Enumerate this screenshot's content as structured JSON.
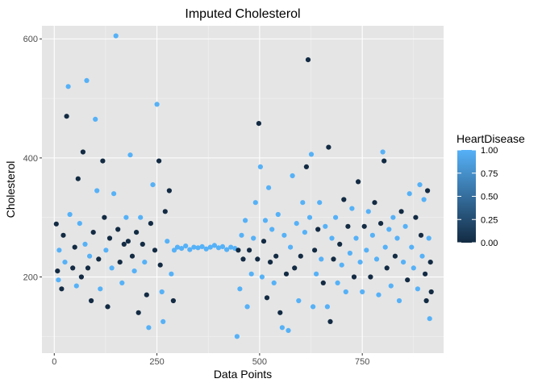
{
  "chart_data": {
    "type": "scatter",
    "title": "Imputed Cholesterol",
    "xlabel": "Data Points",
    "ylabel": "Cholesterol",
    "xlim": [
      -30,
      948
    ],
    "ylim": [
      72,
      622
    ],
    "x_ticks": [
      0,
      250,
      500,
      750
    ],
    "y_ticks": [
      200,
      400,
      600
    ],
    "grid": true,
    "panel_background": "#e5e5e5",
    "legend": {
      "title": "HeartDisease",
      "position": "right",
      "min": 0,
      "max": 1,
      "breaks": [
        0,
        0.25,
        0.5,
        0.75,
        1
      ],
      "break_labels": [
        "0.00",
        "0.25",
        "0.50",
        "0.75",
        "1.00"
      ],
      "low_color": "#132b43",
      "high_color": "#56b1f7"
    },
    "point_color_variable": "HeartDisease",
    "points": [
      [
        5,
        289,
        0
      ],
      [
        8,
        210,
        0
      ],
      [
        10,
        195,
        1
      ],
      [
        12,
        245,
        1
      ],
      [
        18,
        180,
        0
      ],
      [
        22,
        270,
        0
      ],
      [
        26,
        225,
        1
      ],
      [
        30,
        470,
        0
      ],
      [
        34,
        520,
        1
      ],
      [
        38,
        305,
        1
      ],
      [
        45,
        215,
        0
      ],
      [
        50,
        250,
        0
      ],
      [
        54,
        185,
        1
      ],
      [
        58,
        365,
        0
      ],
      [
        62,
        290,
        1
      ],
      [
        66,
        200,
        0
      ],
      [
        70,
        410,
        0
      ],
      [
        75,
        255,
        1
      ],
      [
        79,
        530,
        1
      ],
      [
        82,
        215,
        0
      ],
      [
        86,
        235,
        1
      ],
      [
        90,
        160,
        0
      ],
      [
        95,
        275,
        0
      ],
      [
        100,
        465,
        1
      ],
      [
        104,
        345,
        1
      ],
      [
        108,
        230,
        0
      ],
      [
        112,
        180,
        1
      ],
      [
        118,
        395,
        0
      ],
      [
        122,
        300,
        0
      ],
      [
        126,
        245,
        1
      ],
      [
        130,
        150,
        0
      ],
      [
        135,
        265,
        0
      ],
      [
        140,
        215,
        1
      ],
      [
        145,
        340,
        1
      ],
      [
        150,
        605,
        1
      ],
      [
        155,
        280,
        0
      ],
      [
        160,
        225,
        0
      ],
      [
        165,
        190,
        1
      ],
      [
        170,
        255,
        0
      ],
      [
        175,
        300,
        1
      ],
      [
        180,
        260,
        0
      ],
      [
        185,
        405,
        1
      ],
      [
        190,
        235,
        0
      ],
      [
        195,
        210,
        1
      ],
      [
        200,
        275,
        0
      ],
      [
        205,
        140,
        0
      ],
      [
        210,
        300,
        1
      ],
      [
        215,
        255,
        0
      ],
      [
        220,
        225,
        1
      ],
      [
        225,
        170,
        0
      ],
      [
        230,
        115,
        1
      ],
      [
        235,
        290,
        0
      ],
      [
        240,
        355,
        1
      ],
      [
        245,
        245,
        0
      ],
      [
        250,
        490,
        1
      ],
      [
        255,
        395,
        0
      ],
      [
        258,
        220,
        0
      ],
      [
        262,
        175,
        1
      ],
      [
        265,
        125,
        1
      ],
      [
        270,
        310,
        0
      ],
      [
        275,
        260,
        1
      ],
      [
        280,
        345,
        0
      ],
      [
        285,
        205,
        1
      ],
      [
        290,
        160,
        0
      ],
      [
        292,
        245,
        1
      ],
      [
        300,
        250,
        1
      ],
      [
        310,
        248,
        1
      ],
      [
        320,
        252,
        1
      ],
      [
        330,
        246,
        1
      ],
      [
        340,
        250,
        1
      ],
      [
        350,
        249,
        1
      ],
      [
        360,
        251,
        1
      ],
      [
        370,
        247,
        1
      ],
      [
        380,
        250,
        1
      ],
      [
        390,
        253,
        1
      ],
      [
        400,
        249,
        1
      ],
      [
        410,
        251,
        1
      ],
      [
        420,
        246,
        1
      ],
      [
        430,
        250,
        1
      ],
      [
        440,
        248,
        1
      ],
      [
        445,
        100,
        1
      ],
      [
        448,
        245,
        0
      ],
      [
        452,
        180,
        1
      ],
      [
        456,
        270,
        1
      ],
      [
        460,
        230,
        0
      ],
      [
        465,
        295,
        1
      ],
      [
        470,
        150,
        1
      ],
      [
        475,
        245,
        0
      ],
      [
        480,
        205,
        1
      ],
      [
        485,
        265,
        1
      ],
      [
        490,
        325,
        1
      ],
      [
        495,
        230,
        0
      ],
      [
        498,
        458,
        0
      ],
      [
        502,
        385,
        1
      ],
      [
        506,
        200,
        1
      ],
      [
        510,
        260,
        0
      ],
      [
        514,
        295,
        1
      ],
      [
        518,
        165,
        0
      ],
      [
        522,
        350,
        1
      ],
      [
        526,
        225,
        0
      ],
      [
        530,
        280,
        1
      ],
      [
        535,
        190,
        1
      ],
      [
        540,
        235,
        0
      ],
      [
        545,
        305,
        1
      ],
      [
        550,
        140,
        0
      ],
      [
        555,
        115,
        1
      ],
      [
        560,
        270,
        1
      ],
      [
        565,
        205,
        0
      ],
      [
        570,
        110,
        1
      ],
      [
        575,
        250,
        1
      ],
      [
        580,
        370,
        1
      ],
      [
        585,
        215,
        0
      ],
      [
        590,
        290,
        1
      ],
      [
        595,
        160,
        1
      ],
      [
        600,
        235,
        0
      ],
      [
        605,
        325,
        1
      ],
      [
        610,
        275,
        1
      ],
      [
        614,
        385,
        0
      ],
      [
        618,
        565,
        0
      ],
      [
        622,
        300,
        1
      ],
      [
        626,
        406,
        1
      ],
      [
        630,
        150,
        1
      ],
      [
        634,
        245,
        0
      ],
      [
        638,
        205,
        1
      ],
      [
        642,
        280,
        0
      ],
      [
        646,
        325,
        1
      ],
      [
        650,
        230,
        1
      ],
      [
        655,
        190,
        0
      ],
      [
        660,
        285,
        1
      ],
      [
        665,
        150,
        1
      ],
      [
        668,
        418,
        0
      ],
      [
        672,
        125,
        0
      ],
      [
        676,
        265,
        1
      ],
      [
        680,
        230,
        0
      ],
      [
        685,
        300,
        1
      ],
      [
        690,
        190,
        1
      ],
      [
        695,
        255,
        0
      ],
      [
        700,
        220,
        1
      ],
      [
        705,
        330,
        0
      ],
      [
        710,
        175,
        1
      ],
      [
        715,
        285,
        0
      ],
      [
        720,
        240,
        1
      ],
      [
        725,
        315,
        1
      ],
      [
        730,
        200,
        0
      ],
      [
        735,
        265,
        1
      ],
      [
        740,
        360,
        0
      ],
      [
        745,
        225,
        1
      ],
      [
        750,
        175,
        1
      ],
      [
        755,
        285,
        0
      ],
      [
        760,
        245,
        1
      ],
      [
        765,
        310,
        1
      ],
      [
        770,
        200,
        0
      ],
      [
        775,
        270,
        1
      ],
      [
        780,
        325,
        0
      ],
      [
        785,
        230,
        1
      ],
      [
        790,
        170,
        1
      ],
      [
        795,
        290,
        0
      ],
      [
        800,
        410,
        1
      ],
      [
        803,
        395,
        0
      ],
      [
        806,
        250,
        1
      ],
      [
        810,
        215,
        0
      ],
      [
        815,
        280,
        1
      ],
      [
        820,
        185,
        1
      ],
      [
        825,
        300,
        1
      ],
      [
        830,
        235,
        0
      ],
      [
        835,
        265,
        1
      ],
      [
        840,
        160,
        1
      ],
      [
        845,
        310,
        0
      ],
      [
        850,
        225,
        1
      ],
      [
        855,
        285,
        1
      ],
      [
        860,
        195,
        0
      ],
      [
        865,
        340,
        1
      ],
      [
        870,
        250,
        1
      ],
      [
        875,
        215,
        1
      ],
      [
        880,
        300,
        0
      ],
      [
        885,
        180,
        1
      ],
      [
        890,
        355,
        1
      ],
      [
        893,
        270,
        0
      ],
      [
        896,
        235,
        1
      ],
      [
        900,
        330,
        1
      ],
      [
        903,
        205,
        0
      ],
      [
        906,
        160,
        0
      ],
      [
        909,
        345,
        0
      ],
      [
        912,
        265,
        1
      ],
      [
        914,
        130,
        1
      ],
      [
        916,
        225,
        0
      ],
      [
        918,
        175,
        0
      ]
    ]
  }
}
